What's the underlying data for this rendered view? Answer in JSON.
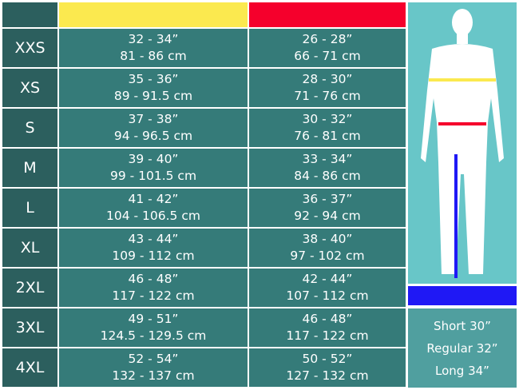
{
  "colors": {
    "chest": "#fbe94f",
    "waist": "#f5002c",
    "inseam": "#1f18f5"
  },
  "rows": [
    {
      "size": "XXS",
      "chest_in": "32 - 34”",
      "chest_cm": "81 - 86 cm",
      "waist_in": "26 - 28”",
      "waist_cm": "66 - 71 cm"
    },
    {
      "size": "XS",
      "chest_in": "35 - 36”",
      "chest_cm": "89 - 91.5 cm",
      "waist_in": "28 - 30”",
      "waist_cm": "71 - 76 cm"
    },
    {
      "size": "S",
      "chest_in": "37 - 38”",
      "chest_cm": "94 - 96.5 cm",
      "waist_in": "30 - 32”",
      "waist_cm": "76 - 81 cm"
    },
    {
      "size": "M",
      "chest_in": "39 - 40”",
      "chest_cm": "99 - 101.5 cm",
      "waist_in": "33 - 34”",
      "waist_cm": "84 - 86 cm"
    },
    {
      "size": "L",
      "chest_in": "41 - 42”",
      "chest_cm": "104 - 106.5 cm",
      "waist_in": "36 - 37”",
      "waist_cm": "92 - 94 cm"
    },
    {
      "size": "XL",
      "chest_in": "43 - 44”",
      "chest_cm": "109 - 112 cm",
      "waist_in": "38 - 40”",
      "waist_cm": "97 - 102 cm"
    },
    {
      "size": "2XL",
      "chest_in": "46 - 48”",
      "chest_cm": "117 - 122 cm",
      "waist_in": "42 - 44”",
      "waist_cm": "107 - 112 cm"
    },
    {
      "size": "3XL",
      "chest_in": "49 - 51”",
      "chest_cm": "124.5 - 129.5 cm",
      "waist_in": "46 - 48”",
      "waist_cm": "117 - 122 cm"
    },
    {
      "size": "4XL",
      "chest_in": "52 - 54”",
      "chest_cm": "132 - 137 cm",
      "waist_in": "50 - 52”",
      "waist_cm": "127 - 132 cm"
    }
  ],
  "inseam": [
    "Short 30”",
    "Regular 32”",
    "Long 34”"
  ]
}
